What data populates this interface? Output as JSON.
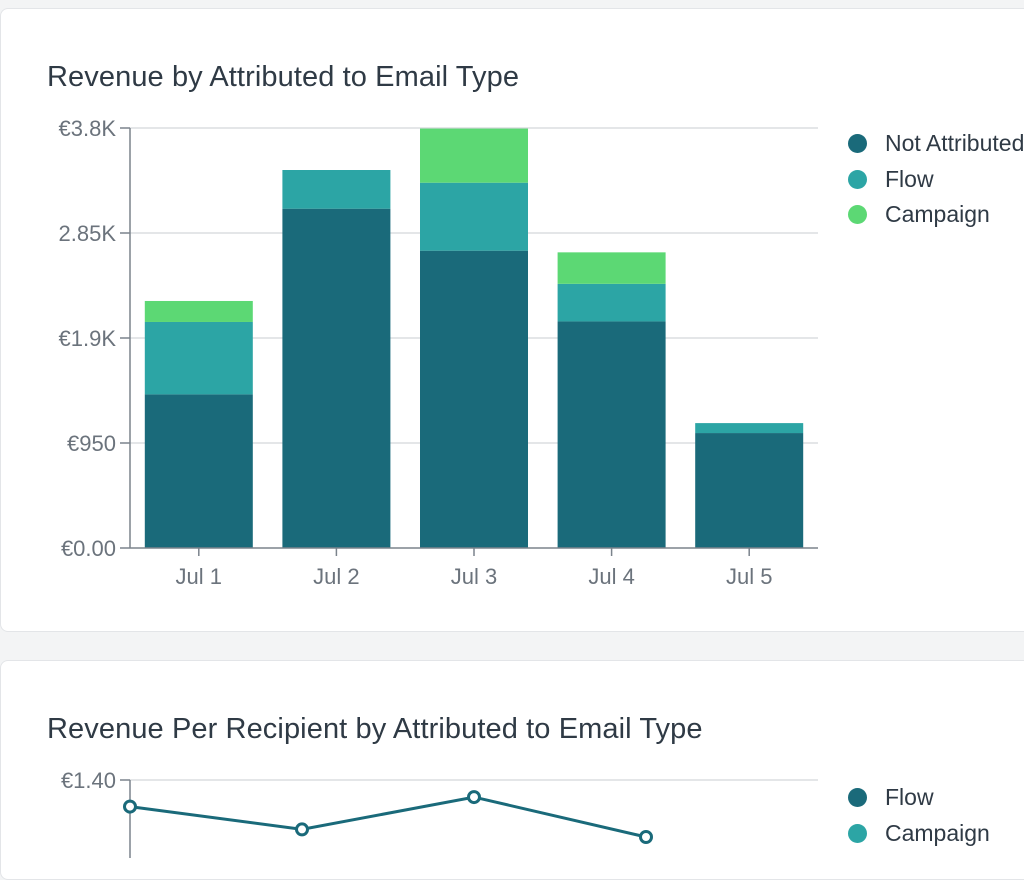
{
  "colors": {
    "not_attributed": "#1a6a7a",
    "flow": "#2ca5a5",
    "campaign": "#5cd874",
    "grid": "#d3d6da",
    "axis": "#7b838c",
    "tick_text": "#6b737c"
  },
  "card1": {
    "title": "Revenue by Attributed to Email Type",
    "legend": [
      {
        "label": "Not Attributed",
        "color": "#1a6a7a"
      },
      {
        "label": "Flow",
        "color": "#2ca5a5"
      },
      {
        "label": "Campaign",
        "color": "#5cd874"
      }
    ]
  },
  "card2": {
    "title": "Revenue Per Recipient by Attributed to Email Type",
    "legend": [
      {
        "label": "Flow",
        "color": "#1a6a7a"
      },
      {
        "label": "Campaign",
        "color": "#2ca5a5"
      }
    ]
  },
  "chart_data": [
    {
      "type": "bar",
      "stacked": true,
      "title": "Revenue by Attributed to Email Type",
      "xlabel": "",
      "ylabel": "",
      "categories": [
        "Jul 1",
        "Jul 2",
        "Jul 3",
        "Jul 4",
        "Jul 5"
      ],
      "series": [
        {
          "name": "Not Attributed",
          "color": "#1a6a7a",
          "values": [
            1390,
            3070,
            2690,
            2050,
            1040
          ]
        },
        {
          "name": "Flow",
          "color": "#2ca5a5",
          "values": [
            655,
            350,
            615,
            340,
            90
          ]
        },
        {
          "name": "Campaign",
          "color": "#5cd874",
          "values": [
            190,
            0,
            490,
            285,
            0
          ]
        }
      ],
      "yticks": [
        0,
        950,
        1900,
        2850,
        3800
      ],
      "ytick_labels": [
        "€0.00",
        "€950",
        "€1.9K",
        "2.85K",
        "€3.8K"
      ],
      "ylim": [
        0,
        3800
      ],
      "grid": true,
      "legend_position": "right"
    },
    {
      "type": "line",
      "title": "Revenue Per Recipient by Attributed to Email Type",
      "xlabel": "",
      "ylabel": "",
      "categories": [
        "Jul 1",
        "Jul 2",
        "Jul 3",
        "Jul 4",
        "Jul 5"
      ],
      "series": [
        {
          "name": "Flow",
          "color": "#1a6a7a",
          "values": [
            1.26,
            1.14,
            1.31,
            1.1,
            null
          ]
        }
      ],
      "yticks": [
        1.4
      ],
      "ytick_labels": [
        "€1.40"
      ],
      "grid": true,
      "legend_position": "right"
    }
  ]
}
